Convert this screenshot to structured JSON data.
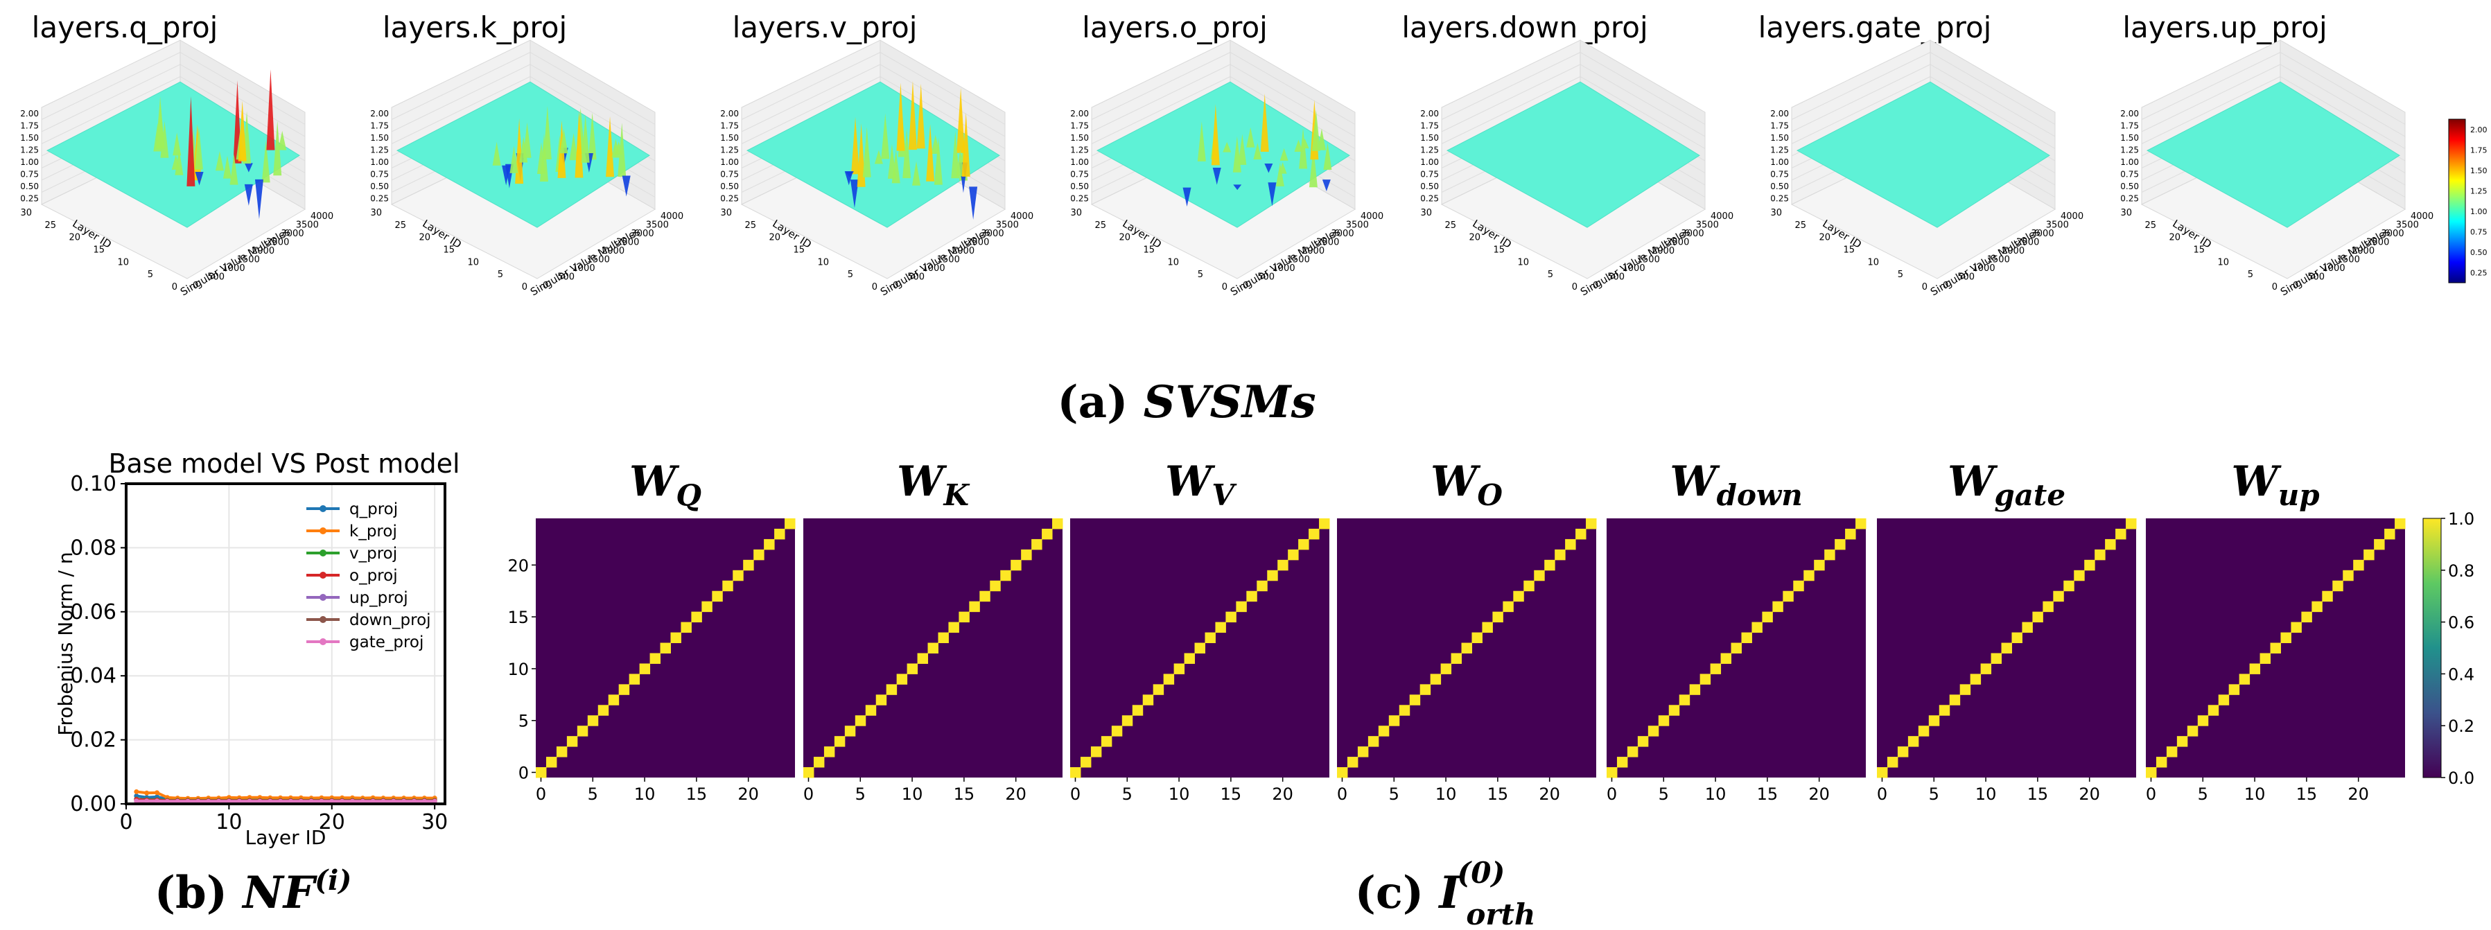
{
  "svsm": {
    "caption_prefix": "(a) ",
    "caption_math": "SVSMs",
    "titles": [
      "layers.q_proj",
      "layers.k_proj",
      "layers.v_proj",
      "layers.o_proj",
      "layers.down_proj",
      "layers.gate_proj",
      "layers.up_proj"
    ],
    "z_ticks": [
      "0.25",
      "0.50",
      "0.75",
      "1.00",
      "1.25",
      "1.50",
      "1.75",
      "2.00"
    ],
    "layer_ticks": [
      "0",
      "5",
      "10",
      "15",
      "20",
      "25",
      "30"
    ],
    "sv_ticks": [
      "0",
      "500",
      "1000",
      "1500",
      "2000",
      "2500",
      "3000",
      "3500",
      "4000"
    ],
    "ylabel": "Layer ID",
    "xlabel": "Singular Value Multiples",
    "colorbar_ticks": [
      "0.25",
      "0.50",
      "0.75",
      "1.00",
      "1.25",
      "1.50",
      "1.75",
      "2.00"
    ],
    "peak_strength": [
      1.0,
      0.9,
      0.9,
      0.7,
      0.0,
      0.0,
      0.0
    ]
  },
  "nf": {
    "caption_prefix": "(b) ",
    "caption_math": "NF",
    "caption_sup": "(i)"
  },
  "orth": {
    "caption_prefix": "(c) ",
    "caption_math": "I",
    "caption_sup": "(0)",
    "caption_sub": "orth",
    "titles": [
      {
        "main": "W",
        "sub": "Q"
      },
      {
        "main": "W",
        "sub": "K"
      },
      {
        "main": "W",
        "sub": "V"
      },
      {
        "main": "W",
        "sub": "O"
      },
      {
        "main": "W",
        "sub": "down"
      },
      {
        "main": "W",
        "sub": "gate"
      },
      {
        "main": "W",
        "sub": "up"
      }
    ],
    "y_ticks": [
      "0",
      "5",
      "10",
      "15",
      "20"
    ],
    "x_ticks": [
      "0",
      "5",
      "10",
      "15",
      "20"
    ],
    "colorbar_ticks": [
      "0.0",
      "0.2",
      "0.4",
      "0.6",
      "0.8",
      "1.0"
    ],
    "colors": {
      "low": "#440154",
      "high": "#fde725"
    }
  },
  "chart_data": [
    {
      "type": "line",
      "title": "Base model VS Post model",
      "xlabel": "Layer ID",
      "ylabel": "Frobenius Norm / n",
      "xlim": [
        0,
        31
      ],
      "ylim": [
        0.0,
        0.1
      ],
      "x_ticks": [
        0,
        10,
        20,
        30
      ],
      "y_ticks": [
        0.0,
        0.02,
        0.04,
        0.06,
        0.08,
        0.1
      ],
      "y_tick_labels": [
        "0.00",
        "0.02",
        "0.04",
        "0.06",
        "0.08",
        "0.10"
      ],
      "x_tick_labels": [
        "0",
        "10",
        "20",
        "30"
      ],
      "grid": true,
      "legend": "top-right",
      "x": [
        1,
        2,
        3,
        4,
        5,
        6,
        7,
        8,
        9,
        10,
        11,
        12,
        13,
        14,
        15,
        16,
        17,
        18,
        19,
        20,
        21,
        22,
        23,
        24,
        25,
        26,
        27,
        28,
        29,
        30
      ],
      "series": [
        {
          "name": "q_proj",
          "color": "#1f77b4",
          "values": [
            0.0025,
            0.002,
            0.0022,
            0.0015,
            0.0014,
            0.0014,
            0.0014,
            0.0015,
            0.0015,
            0.0016,
            0.0016,
            0.0016,
            0.0016,
            0.0016,
            0.0016,
            0.0016,
            0.0016,
            0.0016,
            0.0016,
            0.0016,
            0.0016,
            0.0016,
            0.0016,
            0.0016,
            0.0016,
            0.0016,
            0.0016,
            0.0016,
            0.0016,
            0.0016
          ]
        },
        {
          "name": "k_proj",
          "color": "#ff7f0e",
          "values": [
            0.0038,
            0.0034,
            0.0035,
            0.002,
            0.0018,
            0.0017,
            0.0017,
            0.0018,
            0.0018,
            0.002,
            0.0019,
            0.002,
            0.002,
            0.0019,
            0.0019,
            0.0019,
            0.0019,
            0.0018,
            0.0019,
            0.0019,
            0.0019,
            0.0019,
            0.0018,
            0.0019,
            0.0018,
            0.0018,
            0.0018,
            0.0018,
            0.0018,
            0.0018
          ]
        },
        {
          "name": "v_proj",
          "color": "#2ca02c",
          "values": [
            0.0015,
            0.0013,
            0.0013,
            0.0011,
            0.0011,
            0.0011,
            0.0011,
            0.0011,
            0.0011,
            0.0011,
            0.0011,
            0.0011,
            0.0011,
            0.0011,
            0.0011,
            0.0011,
            0.0011,
            0.0011,
            0.0011,
            0.0011,
            0.0011,
            0.0011,
            0.0011,
            0.0011,
            0.0011,
            0.0011,
            0.0011,
            0.0011,
            0.0011,
            0.0011
          ]
        },
        {
          "name": "o_proj",
          "color": "#d62728",
          "values": [
            0.0014,
            0.0012,
            0.0012,
            0.001,
            0.001,
            0.001,
            0.001,
            0.001,
            0.001,
            0.001,
            0.001,
            0.001,
            0.001,
            0.001,
            0.001,
            0.001,
            0.001,
            0.001,
            0.001,
            0.001,
            0.001,
            0.001,
            0.001,
            0.001,
            0.001,
            0.001,
            0.001,
            0.001,
            0.001,
            0.001
          ]
        },
        {
          "name": "up_proj",
          "color": "#9467bd",
          "values": [
            0.0009,
            0.0009,
            0.0009,
            0.0008,
            0.0008,
            0.0008,
            0.0008,
            0.0008,
            0.0008,
            0.0008,
            0.0008,
            0.0008,
            0.0008,
            0.0008,
            0.0008,
            0.0008,
            0.0008,
            0.0008,
            0.0008,
            0.0008,
            0.0008,
            0.0008,
            0.0008,
            0.0008,
            0.0008,
            0.0008,
            0.0008,
            0.0008,
            0.0008,
            0.0008
          ]
        },
        {
          "name": "down_proj",
          "color": "#8c564b",
          "values": [
            0.0009,
            0.0009,
            0.0009,
            0.0008,
            0.0008,
            0.0008,
            0.0008,
            0.0008,
            0.0008,
            0.0008,
            0.0008,
            0.0008,
            0.0008,
            0.0008,
            0.0008,
            0.0008,
            0.0008,
            0.0008,
            0.0008,
            0.0008,
            0.0008,
            0.0008,
            0.0008,
            0.0008,
            0.0008,
            0.0008,
            0.0008,
            0.0008,
            0.0008,
            0.0008
          ]
        },
        {
          "name": "gate_proj",
          "color": "#e377c2",
          "values": [
            0.0009,
            0.0009,
            0.0009,
            0.0008,
            0.0008,
            0.0008,
            0.0008,
            0.0008,
            0.0008,
            0.0008,
            0.0008,
            0.0008,
            0.0008,
            0.0008,
            0.0008,
            0.0008,
            0.0008,
            0.0008,
            0.0008,
            0.0008,
            0.0008,
            0.0008,
            0.0008,
            0.0008,
            0.0008,
            0.0008,
            0.0008,
            0.0008,
            0.0008,
            0.0008
          ]
        }
      ]
    },
    {
      "type": "heatmap",
      "layers": 25,
      "matrices": [
        "W_Q",
        "W_K",
        "W_V",
        "W_O",
        "W_down",
        "W_gate",
        "W_up"
      ],
      "pattern": "identity",
      "diagonal_value": 1.0,
      "off_diagonal_value": 0.0,
      "colorbar_range": [
        0.0,
        1.0
      ]
    }
  ]
}
